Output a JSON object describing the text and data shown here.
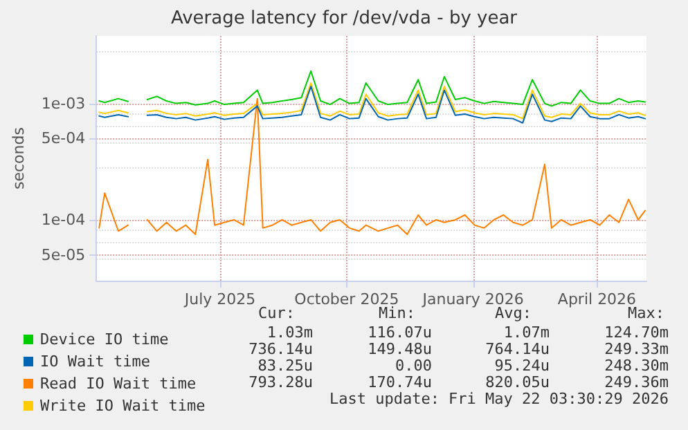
{
  "chart_data": {
    "type": "line",
    "title": "Average latency for /dev/vda - by year",
    "ylabel": "seconds",
    "x": [
      "2025-04-19",
      "2025-04-23",
      "2025-05-03",
      "2025-05-10",
      "2025-05-17",
      "2025-05-24",
      "2025-05-31",
      "2025-06-07",
      "2025-06-14",
      "2025-06-21",
      "2025-06-28",
      "2025-07-07",
      "2025-07-12",
      "2025-07-19",
      "2025-07-26",
      "2025-08-02",
      "2025-08-12",
      "2025-08-16",
      "2025-08-23",
      "2025-08-30",
      "2025-09-06",
      "2025-09-13",
      "2025-09-20",
      "2025-09-27",
      "2025-10-04",
      "2025-10-11",
      "2025-10-18",
      "2025-10-25",
      "2025-10-30",
      "2025-11-08",
      "2025-11-15",
      "2025-11-22",
      "2025-11-29",
      "2025-12-07",
      "2025-12-13",
      "2025-12-20",
      "2025-12-26",
      "2026-01-03",
      "2026-01-10",
      "2026-01-17",
      "2026-01-24",
      "2026-01-31",
      "2026-02-07",
      "2026-02-14",
      "2026-02-21",
      "2026-02-28",
      "2026-03-09",
      "2026-03-14",
      "2026-03-21",
      "2026-03-28",
      "2026-04-04",
      "2026-04-11",
      "2026-04-18",
      "2026-04-25",
      "2026-05-02",
      "2026-05-09",
      "2026-05-16",
      "2026-05-21"
    ],
    "series": [
      {
        "name": "Device IO time",
        "color": "#00cc00",
        "values": [
          0.00105,
          0.00102,
          0.0011,
          0.00104,
          null,
          0.00108,
          0.00115,
          0.00105,
          0.001,
          0.00102,
          0.00097,
          0.001,
          0.00105,
          0.00098,
          0.001,
          0.00102,
          0.0013,
          0.001,
          0.00102,
          0.00105,
          0.00108,
          0.00112,
          0.0019,
          0.00105,
          0.00098,
          0.0011,
          0.001,
          0.00102,
          0.0015,
          0.00105,
          0.00098,
          0.001,
          0.00102,
          0.0016,
          0.001,
          0.00103,
          0.0017,
          0.00108,
          0.00112,
          0.00105,
          0.001,
          0.00104,
          0.00102,
          0.001,
          0.00098,
          0.0016,
          0.001,
          0.00095,
          0.00102,
          0.001,
          0.0013,
          0.00105,
          0.001,
          0.001,
          0.0011,
          0.00102,
          0.00105,
          0.00103
        ]
      },
      {
        "name": "IO Wait time",
        "color": "#0066b3",
        "values": [
          0.00078,
          0.00076,
          0.0008,
          0.00077,
          null,
          0.00079,
          0.0008,
          0.00076,
          0.00074,
          0.00076,
          0.00072,
          0.00075,
          0.00077,
          0.00073,
          0.00075,
          0.00076,
          0.00095,
          0.00074,
          0.00075,
          0.00076,
          0.00078,
          0.0008,
          0.0014,
          0.00076,
          0.00072,
          0.0008,
          0.00074,
          0.00075,
          0.0011,
          0.00077,
          0.00072,
          0.00074,
          0.00075,
          0.0012,
          0.00074,
          0.00076,
          0.0013,
          0.00079,
          0.00081,
          0.00077,
          0.00074,
          0.00076,
          0.00075,
          0.00074,
          0.00068,
          0.0012,
          0.00072,
          0.0007,
          0.00075,
          0.00074,
          0.00095,
          0.00077,
          0.00074,
          0.00074,
          0.0008,
          0.00075,
          0.00077,
          0.00074
        ]
      },
      {
        "name": "Read IO Wait time",
        "color": "#ff8000",
        "values": [
          8.5e-05,
          0.00017,
          8e-05,
          9e-05,
          null,
          0.0001,
          8e-05,
          9.5e-05,
          8e-05,
          9e-05,
          7.5e-05,
          0.00033,
          9e-05,
          9.5e-05,
          0.0001,
          9e-05,
          0.0011,
          8.5e-05,
          9e-05,
          0.0001,
          9e-05,
          9.5e-05,
          0.0001,
          8e-05,
          9.5e-05,
          0.0001,
          8.5e-05,
          8e-05,
          9e-05,
          8e-05,
          8.5e-05,
          9e-05,
          7.5e-05,
          0.00011,
          9e-05,
          0.0001,
          9.5e-05,
          0.0001,
          0.00011,
          9e-05,
          8.5e-05,
          0.0001,
          0.00011,
          9.5e-05,
          9e-05,
          0.0001,
          0.0003,
          8.5e-05,
          0.0001,
          9e-05,
          9.5e-05,
          0.0001,
          9e-05,
          0.00011,
          9.5e-05,
          0.00015,
          0.0001,
          0.00012
        ]
      },
      {
        "name": "Write IO Wait time",
        "color": "#ffcc00",
        "values": [
          0.00084,
          0.00082,
          0.00087,
          0.00083,
          null,
          0.00085,
          0.00087,
          0.00082,
          0.0008,
          0.00082,
          0.00078,
          0.00081,
          0.00083,
          0.00079,
          0.00081,
          0.00082,
          0.001,
          0.0008,
          0.00081,
          0.00082,
          0.00084,
          0.00087,
          0.0015,
          0.00082,
          0.00078,
          0.00086,
          0.0008,
          0.00081,
          0.0012,
          0.00083,
          0.00078,
          0.0008,
          0.00081,
          0.0013,
          0.0008,
          0.00082,
          0.0014,
          0.00085,
          0.00088,
          0.00083,
          0.0008,
          0.00082,
          0.00081,
          0.0008,
          0.00074,
          0.0013,
          0.00078,
          0.00076,
          0.00081,
          0.0008,
          0.001,
          0.00083,
          0.0008,
          0.0008,
          0.00086,
          0.00081,
          0.00083,
          0.00079
        ]
      }
    ],
    "xlim": [
      "2025-04-17",
      "2026-05-22"
    ],
    "xticks": [
      {
        "value": "2025-07-16",
        "label": "July 2025"
      },
      {
        "value": "2025-10-16",
        "label": "October 2025"
      },
      {
        "value": "2026-01-16",
        "label": "January 2026"
      },
      {
        "value": "2026-04-16",
        "label": "April 2026"
      }
    ],
    "ylim": [
      3e-05,
      0.0038
    ],
    "yticks": [
      {
        "value": 5e-05,
        "label": "5e-05"
      },
      {
        "value": 0.0001,
        "label": "1e-04"
      },
      {
        "value": 0.0005,
        "label": "5e-04"
      },
      {
        "value": 0.001,
        "label": "1e-03"
      }
    ],
    "log": "y",
    "grid": true,
    "legend": "bottom left",
    "marker": "none",
    "line_style": "solid",
    "annotations": [
      "Cur:",
      "Min:",
      "Avg:",
      "Max:",
      "1.03m",
      "116.07u",
      "1.07m",
      "124.70m",
      "736.14u",
      "149.48u",
      "764.14u",
      "249.33m",
      "83.25u",
      "0.00",
      "95.24u",
      "248.30m",
      "793.28u",
      "170.74u",
      "820.05u",
      "249.36m",
      "Last update: Fri May 22 03:30:29 2026"
    ]
  }
}
